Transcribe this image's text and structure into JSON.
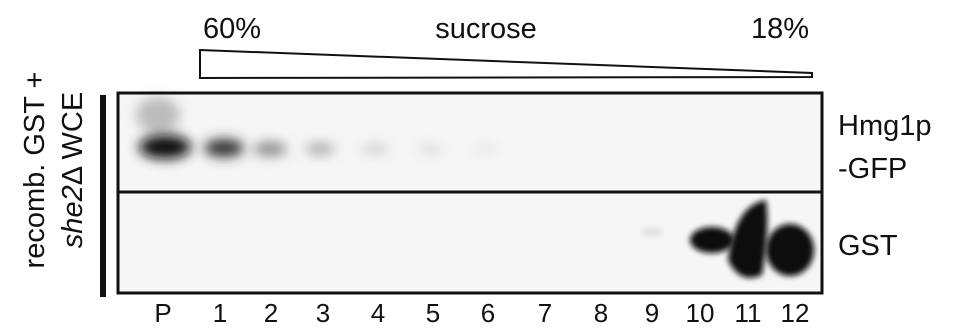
{
  "gradient": {
    "top_label": "60%",
    "middle_label": "sucrose",
    "bottom_label": "18%"
  },
  "side_label": {
    "line1": "recomb. GST +",
    "line2_italic": "she2",
    "line2_rest": "Δ WCE"
  },
  "rows": [
    "Hmg1p",
    "-GFP",
    "GST"
  ],
  "lanes": [
    "P",
    "1",
    "2",
    "3",
    "4",
    "5",
    "6",
    "7",
    "8",
    "9",
    "10",
    "11",
    "12"
  ]
}
